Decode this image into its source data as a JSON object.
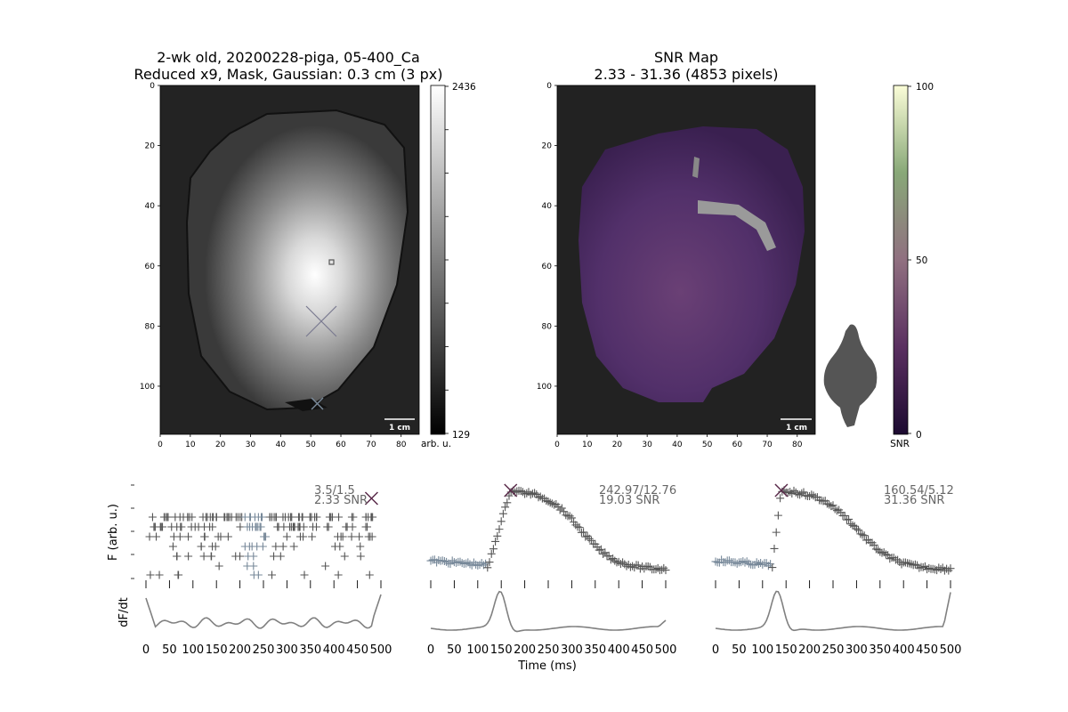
{
  "colors": {
    "background_map": "#222222",
    "trace_marker": "#555555",
    "baseline_marker": "#778899",
    "peak_marker": "#5a2a4a",
    "derivative_line": "#808080",
    "snr_low": "#2a1040",
    "snr_mid": "#806070",
    "snr_high": "#f8fad0"
  },
  "left_map": {
    "title_line1": "2-wk old, 20200228-piga, 05-400_Ca",
    "title_line2": "Reduced x9, Mask, Gaussian: 0.3 cm (3 px)",
    "scale_bar_label": "1 cm",
    "colorbar": {
      "max_label": "2436",
      "min_label": "129",
      "unit_label": "arb. u.",
      "min": 129,
      "max": 2436
    }
  },
  "right_map": {
    "title_line1": "SNR Map",
    "title_line2": "2.33 - 31.36 (4853 pixels)",
    "scale_bar_label": "1 cm",
    "colorbar": {
      "max_label": "100",
      "mid_label": "50",
      "min_label": "0",
      "unit_label": "SNR",
      "min": 0,
      "max": 100
    }
  },
  "chart_data": [
    {
      "type": "heatmap",
      "name": "Fluorescence map",
      "x_ticks": [
        0,
        10,
        20,
        30,
        40,
        50,
        60,
        70,
        80
      ],
      "y_ticks": [
        0,
        20,
        40,
        60,
        80,
        100
      ],
      "xlim": [
        0,
        86
      ],
      "ylim": [
        116,
        0
      ],
      "markers": [
        {
          "kind": "small-square",
          "x": 57,
          "y": 58
        },
        {
          "kind": "large-x",
          "x": 53,
          "y": 79
        },
        {
          "kind": "small-x",
          "x": 52,
          "y": 105
        }
      ]
    },
    {
      "type": "heatmap",
      "name": "SNR map",
      "x_ticks": [
        0,
        10,
        20,
        30,
        40,
        50,
        60,
        70,
        80
      ],
      "y_ticks": [
        0,
        20,
        40,
        60,
        80,
        100
      ],
      "xlim": [
        0,
        86
      ],
      "ylim": [
        116,
        0
      ]
    },
    {
      "type": "scatter",
      "panel": "trace-1",
      "annotation_line1": "3.5/1.5",
      "annotation_line2": "2.33 SNR",
      "ylabel": "F (arb. u.)",
      "xlim": [
        0,
        500
      ],
      "x_ticks": [
        0,
        50,
        100,
        150,
        200,
        250,
        300,
        350,
        400,
        450,
        500
      ],
      "peak_x": 480
    },
    {
      "type": "scatter",
      "panel": "trace-2",
      "annotation_line1": "242.97/12.76",
      "annotation_line2": "19.03 SNR",
      "xlim": [
        0,
        500
      ],
      "x_ticks": [
        0,
        50,
        100,
        150,
        200,
        250,
        300,
        350,
        400,
        450,
        500
      ],
      "peak_x": 170
    },
    {
      "type": "scatter",
      "panel": "trace-3",
      "annotation_line1": "160.54/5.12",
      "annotation_line2": "31.36 SNR",
      "xlim": [
        0,
        500
      ],
      "x_ticks": [
        0,
        50,
        100,
        150,
        200,
        250,
        300,
        350,
        400,
        450,
        500
      ],
      "peak_x": 140
    },
    {
      "type": "line",
      "panel": "derivatives",
      "ylabel": "dF/dt",
      "xlabel": "Time (ms)"
    }
  ]
}
